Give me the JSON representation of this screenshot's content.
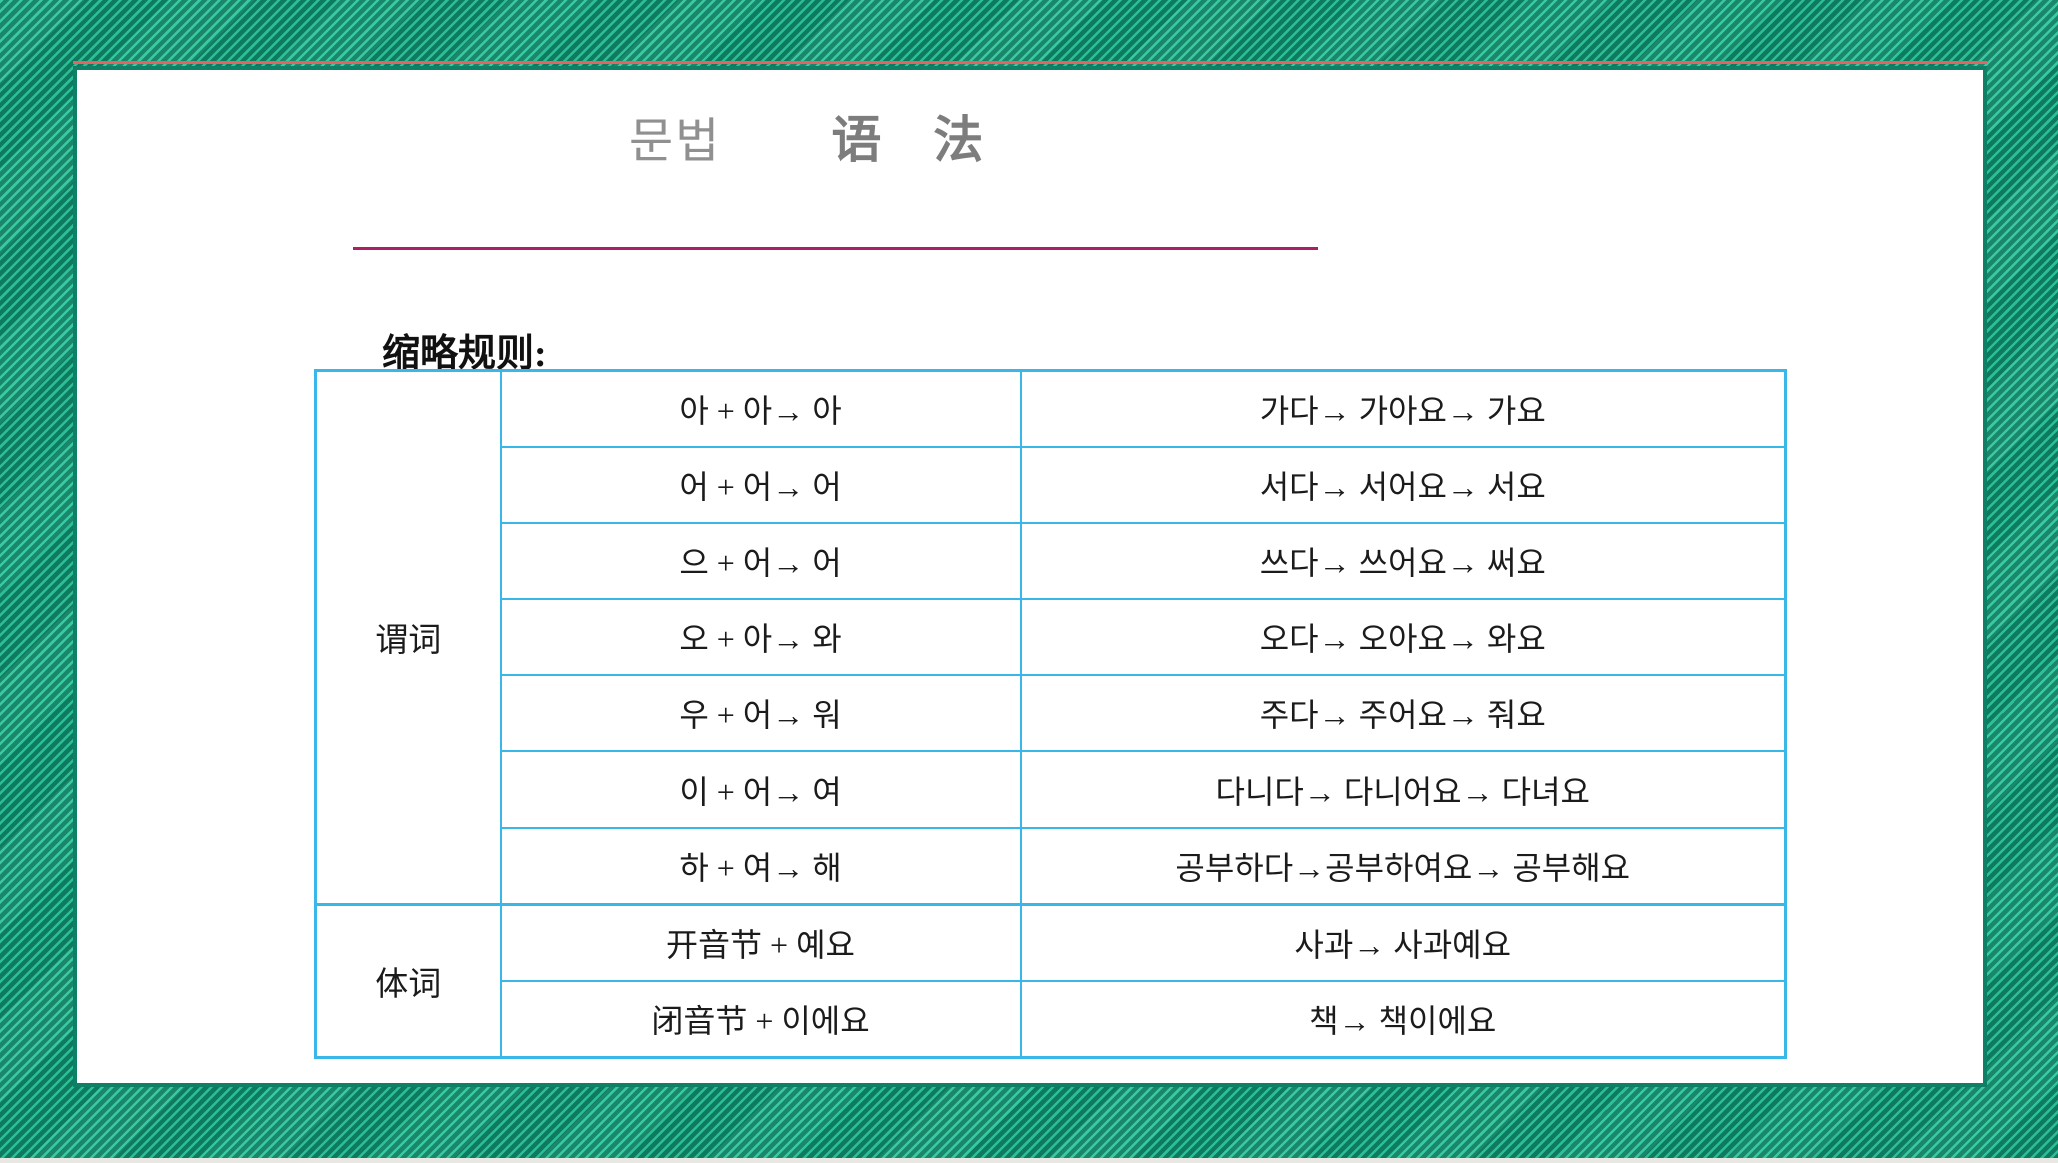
{
  "title": {
    "korean": "문법",
    "chinese": "语 法"
  },
  "heading": "缩略规则:",
  "table": {
    "sections": [
      {
        "label": "谓词",
        "rows": [
          {
            "rule": "아 + 아→ 아",
            "example": "가다→ 가아요→ 가요"
          },
          {
            "rule": "어 + 어→ 어",
            "example": "서다→ 서어요→ 서요"
          },
          {
            "rule": "으 + 어→ 어",
            "example": "쓰다→ 쓰어요→ 써요"
          },
          {
            "rule": "오 + 아→ 와",
            "example": "오다→ 오아요→ 와요"
          },
          {
            "rule": "우 + 어→ 워",
            "example": "주다→ 주어요→ 줘요"
          },
          {
            "rule": "이 + 어→ 여",
            "example": "다니다→ 다니어요→ 다녀요"
          },
          {
            "rule": "하 + 여→ 해",
            "example": "공부하다→공부하여요→ 공부해요"
          }
        ]
      },
      {
        "label": "体词",
        "rows": [
          {
            "rule": "开音节 + 예요",
            "example": "사과→ 사과예요"
          },
          {
            "rule": "闭音节 + 이에요",
            "example": "책→ 책이에요"
          }
        ]
      }
    ]
  },
  "colors": {
    "background-dark-green": "#0e7f63",
    "background-stripe-green": "#2ec79b",
    "panel-border-green": "#0d8066",
    "panel-top-accent-red": "#e96262",
    "title-gray": "#8c8c8c",
    "divider-crimson": "#ab1f63",
    "table-border-blue": "#3ab7e9",
    "text-dark": "#1b1b1b",
    "bottom-strip": "#e9e7e2"
  }
}
